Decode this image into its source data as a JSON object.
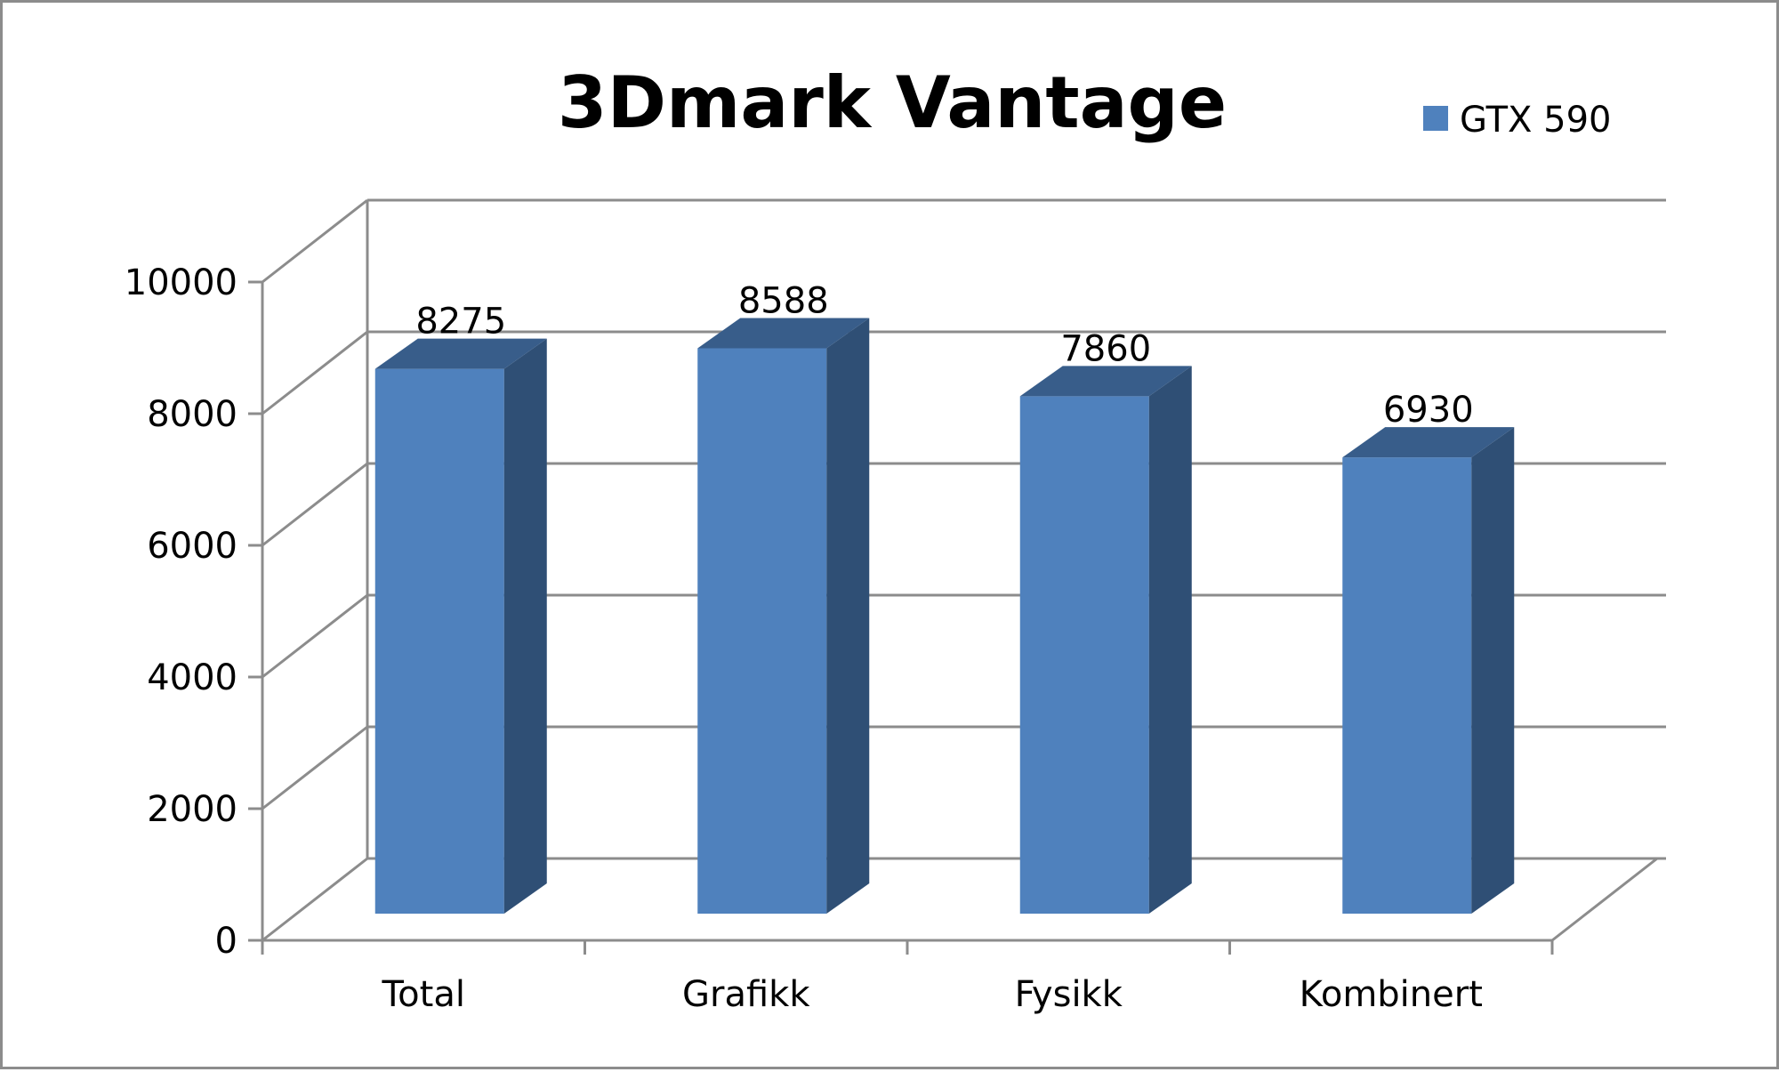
{
  "chart_data": {
    "type": "bar",
    "title": "3Dmark Vantage",
    "categories": [
      "Total",
      "Grafikk",
      "Fysikk",
      "Kombinert"
    ],
    "series": [
      {
        "name": "GTX 590",
        "values": [
          8275,
          8588,
          7860,
          6930
        ],
        "color": "#4f81bd",
        "side_color": "#2f4f75",
        "top_color": "#385d8a"
      }
    ],
    "y_ticks": [
      "0",
      "2000",
      "4000",
      "6000",
      "8000",
      "10000"
    ],
    "data_labels": [
      "8275",
      "8588",
      "7860",
      "6930"
    ],
    "ylim": [
      0,
      10000
    ],
    "grid": true,
    "legend_position": "top-right",
    "style": "3d-column"
  }
}
